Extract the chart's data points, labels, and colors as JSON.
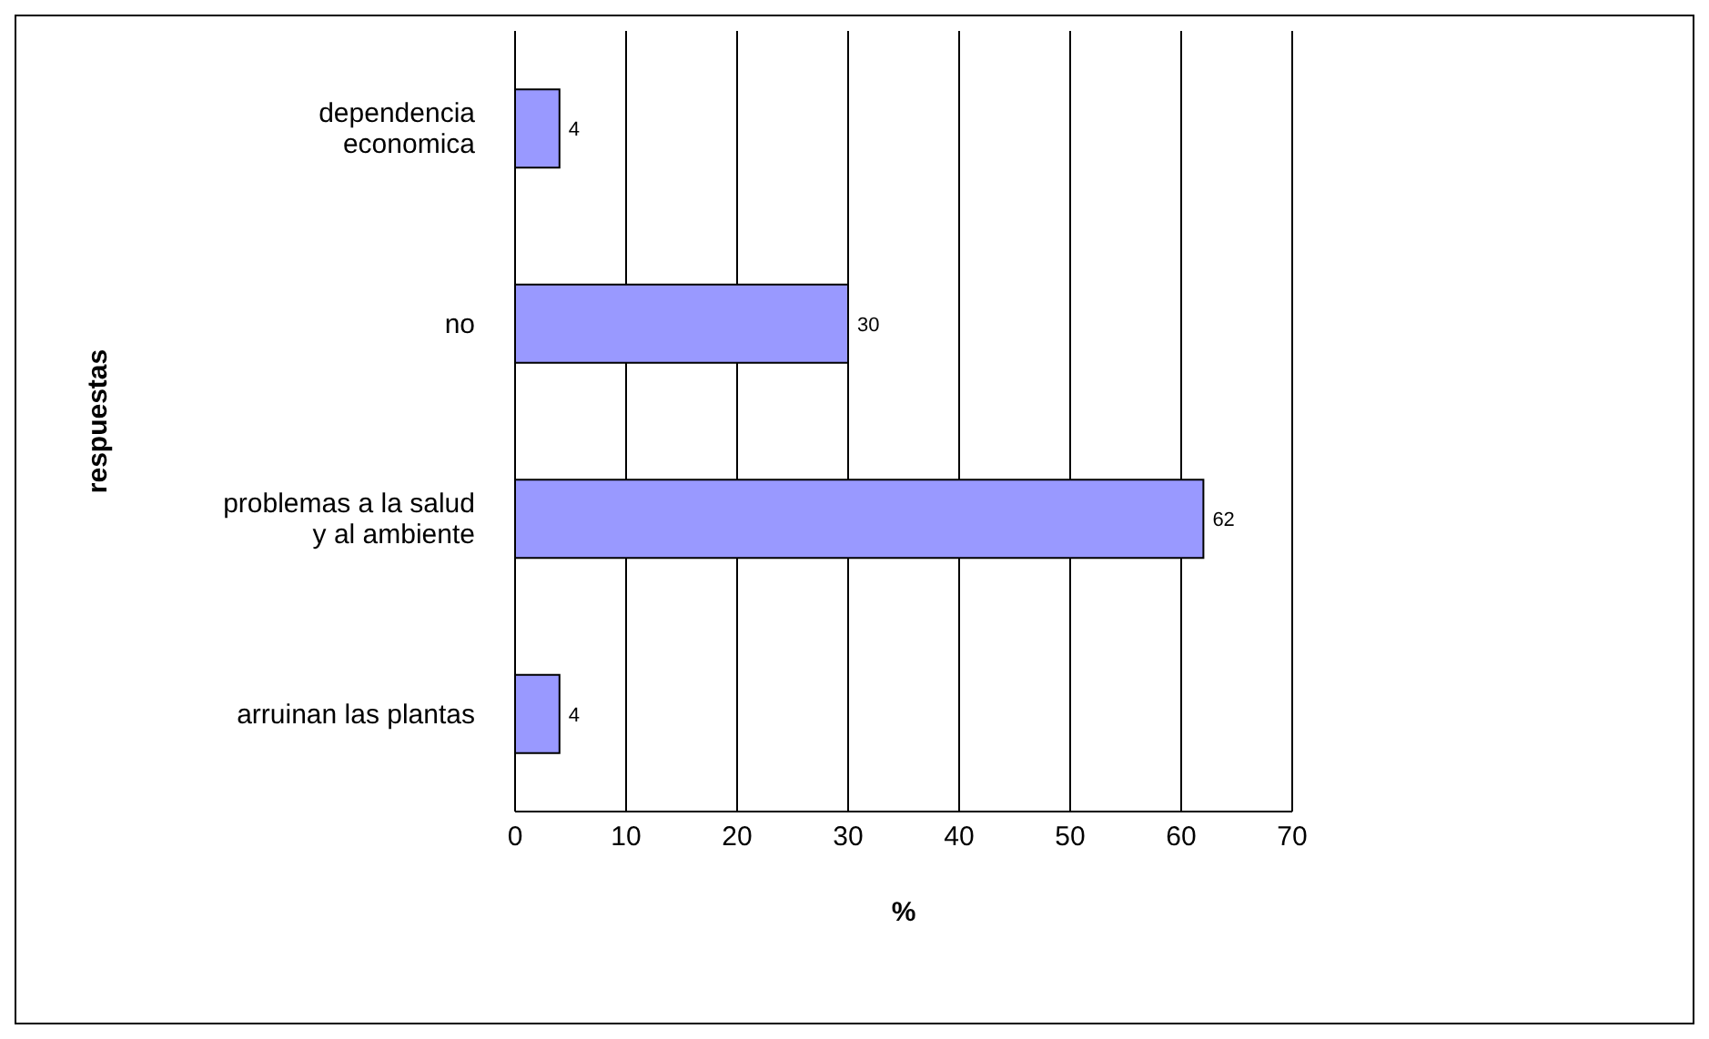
{
  "chart_data": {
    "type": "bar",
    "orientation": "horizontal",
    "categories": [
      "dependencia economica",
      "no",
      "problemas a la salud y al ambiente",
      "arruinan las plantas"
    ],
    "values": [
      4,
      30,
      62,
      4
    ],
    "color": "#9999ff",
    "xlim": [
      0,
      70
    ],
    "xticks": [
      0,
      10,
      20,
      30,
      40,
      50,
      60,
      70
    ],
    "xlabel": "%",
    "ylabel": "respuestas",
    "grid": "x",
    "data_labels": true,
    "legend": false
  }
}
